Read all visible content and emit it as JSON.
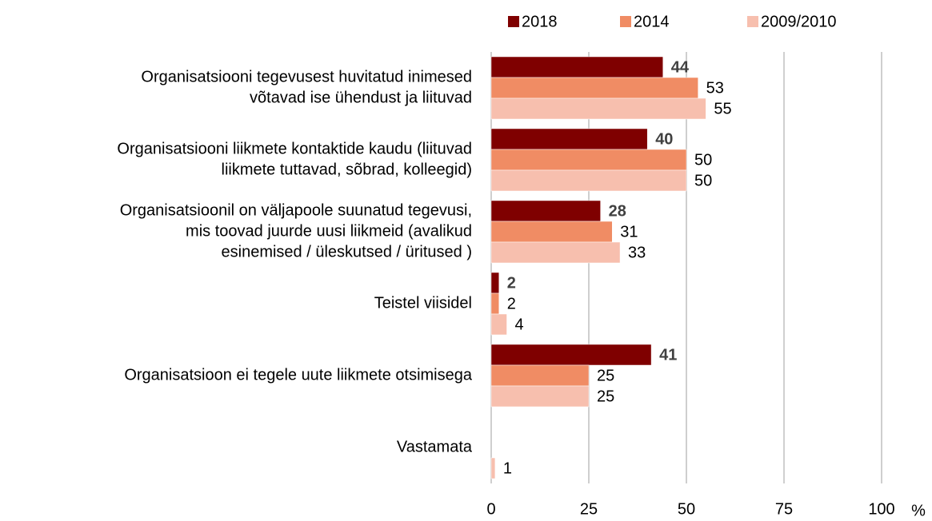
{
  "chart_data": {
    "type": "hbar",
    "categories": [
      [
        "Organisatsiooni tegevusest huvitatud inimesed",
        "võtavad ise ühendust ja liituvad"
      ],
      [
        "Organisatsiooni liikmete kontaktide kaudu (liituvad",
        "liikmete tuttavad, sõbrad, kolleegid)"
      ],
      [
        "Organisatsioonil on väljapoole suunatud tegevusi,",
        "mis toovad juurde uusi liikmeid (avalikud",
        "esinemised / üleskutsed / üritused )"
      ],
      [
        "Teistel viisidel"
      ],
      [
        "Organisatsioon ei tegele uute liikmete otsimisega"
      ],
      [
        "Vastamata"
      ]
    ],
    "series": [
      {
        "name": "2018",
        "color": "#7f0000",
        "bold_labels": true,
        "values": [
          44,
          40,
          28,
          2,
          41,
          null
        ]
      },
      {
        "name": "2014",
        "color": "#f08c64",
        "bold_labels": false,
        "values": [
          53,
          50,
          31,
          2,
          25,
          null
        ]
      },
      {
        "name": "2009/2010",
        "color": "#f7bfae",
        "bold_labels": false,
        "values": [
          55,
          50,
          33,
          4,
          25,
          1
        ]
      }
    ],
    "xlim": [
      0,
      100
    ],
    "xticks": [
      0,
      25,
      50,
      75,
      100
    ],
    "x_unit": "%",
    "grid": true,
    "legend": "top"
  }
}
